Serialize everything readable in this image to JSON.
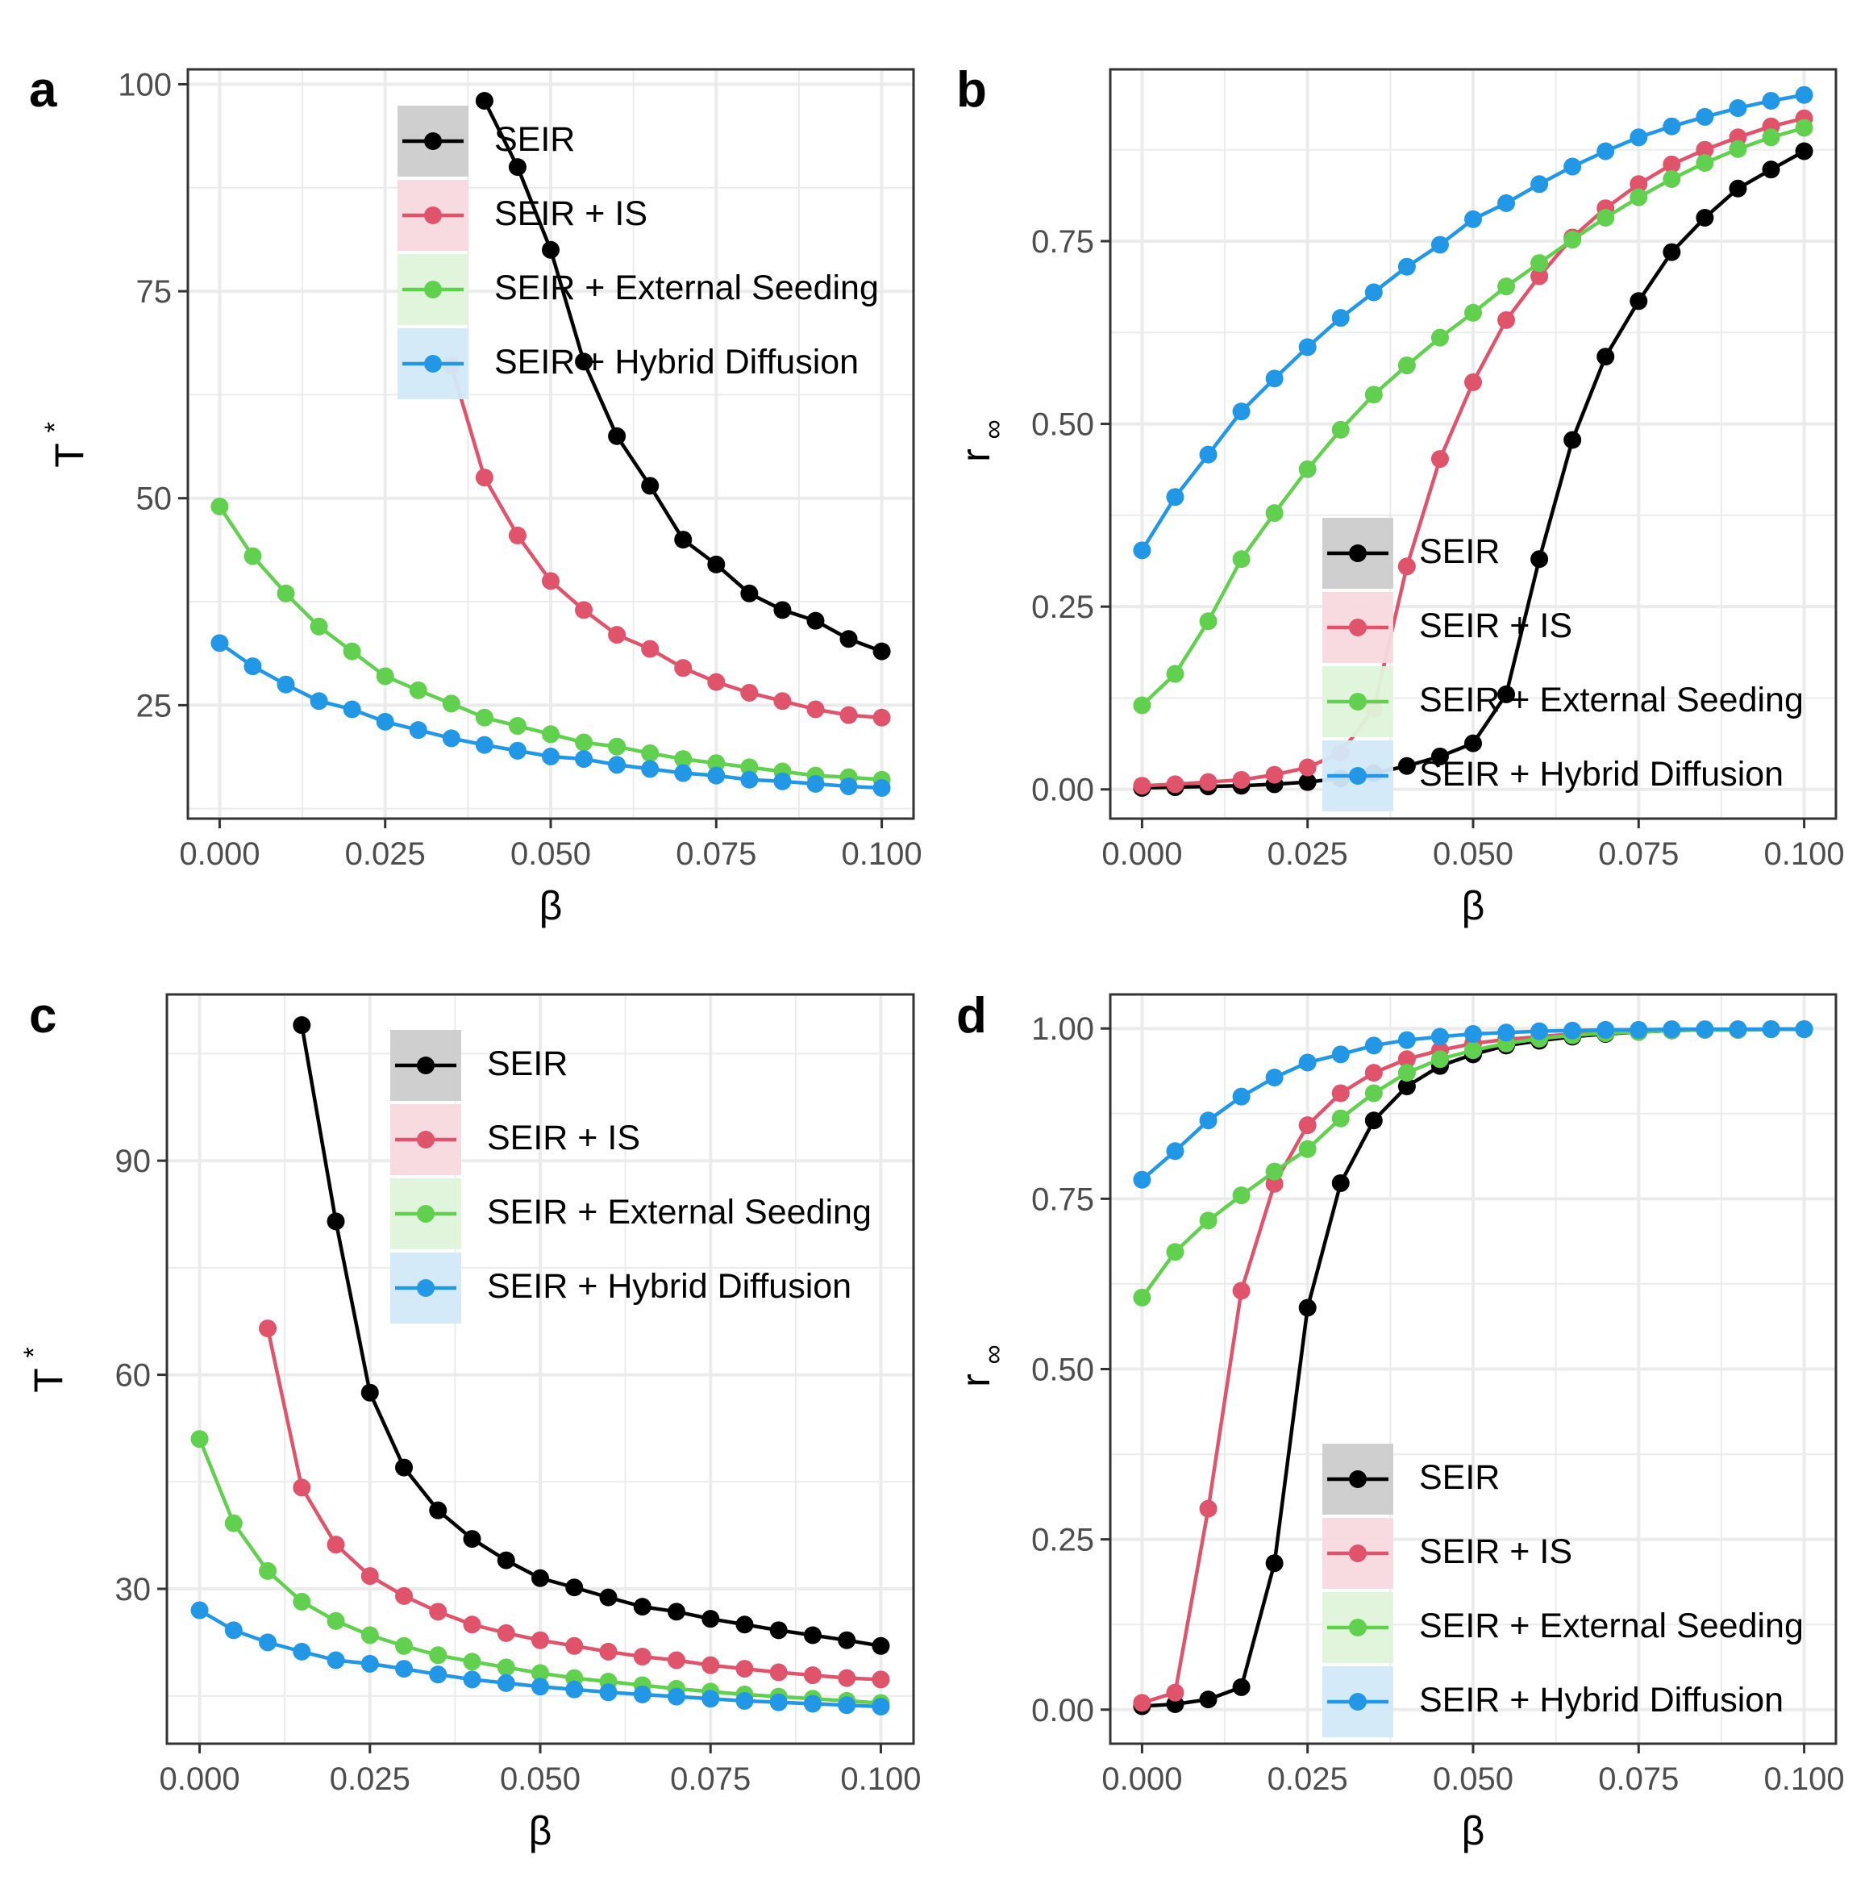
{
  "figure": {
    "title": ""
  },
  "colors": {
    "SEIR": "#000000",
    "SEIR + IS": "#DF536B",
    "SEIR + External Seeding": "#61D04F",
    "SEIR + Hybrid Diffusion": "#2297E6",
    "grid": "#EBEBEB",
    "panel_border": "#333333"
  },
  "chart_data": [
    {
      "panel_id": "a",
      "type": "line",
      "panel_label": "a",
      "xlabel": "β",
      "ylabel_main": "T",
      "ylabel_sup": "*",
      "ylabel_sub": "",
      "xlim": [
        -0.0048,
        0.1048
      ],
      "ylim": [
        11.3,
        101.8
      ],
      "xticks": [
        0,
        0.025,
        0.05,
        0.075,
        0.1
      ],
      "xtick_labels": [
        "0.000",
        "0.025",
        "0.050",
        "0.075",
        "0.100"
      ],
      "yticks": [
        25,
        50,
        75,
        100
      ],
      "ytick_labels": [
        "25",
        "50",
        "75",
        "100"
      ],
      "legend_position": "top-right",
      "series": [
        {
          "name": "SEIR",
          "x": [
            0.04,
            0.045,
            0.05,
            0.055,
            0.06,
            0.065,
            0.07,
            0.075,
            0.08,
            0.085,
            0.09,
            0.095,
            0.1
          ],
          "y": [
            98,
            90,
            80,
            66.5,
            57.5,
            51.5,
            45,
            42,
            38.5,
            36.5,
            35.2,
            33,
            31.5
          ]
        },
        {
          "name": "SEIR + IS",
          "x": [
            0.035,
            0.04,
            0.045,
            0.05,
            0.055,
            0.06,
            0.065,
            0.07,
            0.075,
            0.08,
            0.085,
            0.09,
            0.095,
            0.1
          ],
          "y": [
            66,
            52.5,
            45.5,
            40,
            36.5,
            33.5,
            31.8,
            29.5,
            27.8,
            26.5,
            25.5,
            24.5,
            23.8,
            23.5
          ]
        },
        {
          "name": "SEIR + External Seeding",
          "x": [
            0,
            0.005,
            0.01,
            0.015,
            0.02,
            0.025,
            0.03,
            0.035,
            0.04,
            0.045,
            0.05,
            0.055,
            0.06,
            0.065,
            0.07,
            0.075,
            0.08,
            0.085,
            0.09,
            0.095,
            0.1
          ],
          "y": [
            49,
            43,
            38.5,
            34.5,
            31.5,
            28.5,
            26.8,
            25.2,
            23.5,
            22.5,
            21.5,
            20.5,
            20,
            19.2,
            18.5,
            18,
            17.5,
            17,
            16.5,
            16.3,
            16
          ]
        },
        {
          "name": "SEIR + Hybrid Diffusion",
          "x": [
            0,
            0.005,
            0.01,
            0.015,
            0.02,
            0.025,
            0.03,
            0.035,
            0.04,
            0.045,
            0.05,
            0.055,
            0.06,
            0.065,
            0.07,
            0.075,
            0.08,
            0.085,
            0.09,
            0.095,
            0.1
          ],
          "y": [
            32.5,
            29.7,
            27.5,
            25.5,
            24.5,
            23,
            22,
            21,
            20.2,
            19.5,
            18.8,
            18.5,
            17.8,
            17.3,
            16.8,
            16.5,
            16,
            15.8,
            15.5,
            15.2,
            15
          ]
        }
      ]
    },
    {
      "panel_id": "b",
      "type": "line",
      "panel_label": "b",
      "xlabel": "β",
      "ylabel_main": "r",
      "ylabel_sup": "",
      "ylabel_sub": "∞",
      "xlim": [
        -0.0048,
        0.1048
      ],
      "ylim": [
        -0.04,
        0.985
      ],
      "xticks": [
        0,
        0.025,
        0.05,
        0.075,
        0.1
      ],
      "xtick_labels": [
        "0.000",
        "0.025",
        "0.050",
        "0.075",
        "0.100"
      ],
      "yticks": [
        0,
        0.25,
        0.5,
        0.75
      ],
      "ytick_labels": [
        "0.00",
        "0.25",
        "0.50",
        "0.75"
      ],
      "legend_position": "bottom-right",
      "series": [
        {
          "name": "SEIR",
          "x": [
            0,
            0.005,
            0.01,
            0.015,
            0.02,
            0.025,
            0.03,
            0.035,
            0.04,
            0.045,
            0.05,
            0.055,
            0.06,
            0.065,
            0.07,
            0.075,
            0.08,
            0.085,
            0.09,
            0.095,
            0.1
          ],
          "y": [
            0.002,
            0.003,
            0.004,
            0.005,
            0.007,
            0.01,
            0.015,
            0.022,
            0.032,
            0.045,
            0.063,
            0.13,
            0.315,
            0.478,
            0.592,
            0.668,
            0.735,
            0.782,
            0.822,
            0.848,
            0.873
          ]
        },
        {
          "name": "SEIR + IS",
          "x": [
            0,
            0.005,
            0.01,
            0.015,
            0.02,
            0.025,
            0.03,
            0.035,
            0.04,
            0.045,
            0.05,
            0.055,
            0.06,
            0.065,
            0.07,
            0.075,
            0.08,
            0.085,
            0.09,
            0.095,
            0.1
          ],
          "y": [
            0.005,
            0.007,
            0.01,
            0.013,
            0.02,
            0.03,
            0.05,
            0.11,
            0.305,
            0.452,
            0.557,
            0.642,
            0.702,
            0.755,
            0.795,
            0.828,
            0.855,
            0.875,
            0.892,
            0.907,
            0.918
          ]
        },
        {
          "name": "SEIR + External Seeding",
          "x": [
            0,
            0.005,
            0.01,
            0.015,
            0.02,
            0.025,
            0.03,
            0.035,
            0.04,
            0.045,
            0.05,
            0.055,
            0.06,
            0.065,
            0.07,
            0.075,
            0.08,
            0.085,
            0.09,
            0.095,
            0.1
          ],
          "y": [
            0.115,
            0.158,
            0.23,
            0.315,
            0.378,
            0.438,
            0.492,
            0.54,
            0.58,
            0.618,
            0.652,
            0.688,
            0.72,
            0.752,
            0.782,
            0.81,
            0.835,
            0.857,
            0.876,
            0.892,
            0.905
          ]
        },
        {
          "name": "SEIR + Hybrid Diffusion",
          "x": [
            0,
            0.005,
            0.01,
            0.015,
            0.02,
            0.025,
            0.03,
            0.035,
            0.04,
            0.045,
            0.05,
            0.055,
            0.06,
            0.065,
            0.07,
            0.075,
            0.08,
            0.085,
            0.09,
            0.095,
            0.1
          ],
          "y": [
            0.327,
            0.4,
            0.458,
            0.517,
            0.562,
            0.605,
            0.645,
            0.68,
            0.715,
            0.745,
            0.78,
            0.802,
            0.828,
            0.852,
            0.873,
            0.892,
            0.907,
            0.92,
            0.932,
            0.942,
            0.95
          ]
        }
      ]
    },
    {
      "panel_id": "c",
      "type": "line",
      "panel_label": "c",
      "xlabel": "β",
      "ylabel_main": "T",
      "ylabel_sup": "*",
      "ylabel_sub": "",
      "xlim": [
        -0.0048,
        0.1048
      ],
      "ylim": [
        8.3,
        113.3
      ],
      "xticks": [
        0,
        0.025,
        0.05,
        0.075,
        0.1
      ],
      "xtick_labels": [
        "0.000",
        "0.025",
        "0.050",
        "0.075",
        "0.100"
      ],
      "yticks": [
        30,
        60,
        90
      ],
      "ytick_labels": [
        "30",
        "60",
        "90"
      ],
      "legend_position": "top-right",
      "series": [
        {
          "name": "SEIR",
          "x": [
            0.015,
            0.02,
            0.025,
            0.03,
            0.035,
            0.04,
            0.045,
            0.05,
            0.055,
            0.06,
            0.065,
            0.07,
            0.075,
            0.08,
            0.085,
            0.09,
            0.095,
            0.1
          ],
          "y": [
            109,
            81.5,
            57.5,
            47,
            41,
            37,
            34,
            31.5,
            30.2,
            28.8,
            27.5,
            26.8,
            25.8,
            25,
            24.2,
            23.5,
            22.8,
            22
          ]
        },
        {
          "name": "SEIR + IS",
          "x": [
            0.01,
            0.015,
            0.02,
            0.025,
            0.03,
            0.035,
            0.04,
            0.045,
            0.05,
            0.055,
            0.06,
            0.065,
            0.07,
            0.075,
            0.08,
            0.085,
            0.09,
            0.095,
            0.1
          ],
          "y": [
            66.5,
            44.2,
            36.2,
            31.8,
            29,
            26.8,
            25,
            23.8,
            22.8,
            22,
            21.2,
            20.5,
            20,
            19.3,
            18.8,
            18.3,
            17.9,
            17.5,
            17.3
          ]
        },
        {
          "name": "SEIR + External Seeding",
          "x": [
            0,
            0.005,
            0.01,
            0.015,
            0.02,
            0.025,
            0.03,
            0.035,
            0.04,
            0.045,
            0.05,
            0.055,
            0.06,
            0.065,
            0.07,
            0.075,
            0.08,
            0.085,
            0.09,
            0.095,
            0.1
          ],
          "y": [
            51,
            39.2,
            32.5,
            28.2,
            25.5,
            23.5,
            22,
            20.7,
            19.8,
            19,
            18.2,
            17.5,
            17,
            16.5,
            16,
            15.6,
            15.2,
            14.9,
            14.6,
            14.3,
            14
          ]
        },
        {
          "name": "SEIR + Hybrid Diffusion",
          "x": [
            0,
            0.005,
            0.01,
            0.015,
            0.02,
            0.025,
            0.03,
            0.035,
            0.04,
            0.045,
            0.05,
            0.055,
            0.06,
            0.065,
            0.07,
            0.075,
            0.08,
            0.085,
            0.09,
            0.095,
            0.1
          ],
          "y": [
            27,
            24.2,
            22.5,
            21.2,
            20,
            19.5,
            18.8,
            18,
            17.3,
            16.8,
            16.3,
            15.9,
            15.5,
            15.2,
            14.9,
            14.6,
            14.3,
            14.1,
            13.9,
            13.7,
            13.5
          ]
        }
      ]
    },
    {
      "panel_id": "d",
      "type": "line",
      "panel_label": "d",
      "xlabel": "β",
      "ylabel_main": "r",
      "ylabel_sup": "",
      "ylabel_sub": "∞",
      "xlim": [
        -0.0048,
        0.1048
      ],
      "ylim": [
        -0.05,
        1.05
      ],
      "xticks": [
        0,
        0.025,
        0.05,
        0.075,
        0.1
      ],
      "xtick_labels": [
        "0.000",
        "0.025",
        "0.050",
        "0.075",
        "0.100"
      ],
      "yticks": [
        0,
        0.25,
        0.5,
        0.75,
        1
      ],
      "ytick_labels": [
        "0.00",
        "0.25",
        "0.50",
        "0.75",
        "1.00"
      ],
      "legend_position": "bottom-right",
      "series": [
        {
          "name": "SEIR",
          "x": [
            0,
            0.005,
            0.01,
            0.015,
            0.02,
            0.025,
            0.03,
            0.035,
            0.04,
            0.045,
            0.05,
            0.055,
            0.06,
            0.065,
            0.07,
            0.075,
            0.08,
            0.085,
            0.09,
            0.095,
            0.1
          ],
          "y": [
            0.005,
            0.008,
            0.015,
            0.033,
            0.215,
            0.59,
            0.773,
            0.865,
            0.915,
            0.945,
            0.962,
            0.975,
            0.982,
            0.988,
            0.992,
            0.995,
            0.997,
            0.998,
            0.998,
            0.999,
            0.999
          ]
        },
        {
          "name": "SEIR + IS",
          "x": [
            0,
            0.005,
            0.01,
            0.015,
            0.02,
            0.025,
            0.03,
            0.035,
            0.04,
            0.045,
            0.05,
            0.055,
            0.06,
            0.065,
            0.07,
            0.075,
            0.08,
            0.085,
            0.09,
            0.095,
            0.1
          ],
          "y": [
            0.01,
            0.025,
            0.295,
            0.615,
            0.772,
            0.858,
            0.905,
            0.935,
            0.955,
            0.968,
            0.978,
            0.984,
            0.988,
            0.992,
            0.995,
            0.996,
            0.997,
            0.998,
            0.998,
            0.999,
            0.999
          ]
        },
        {
          "name": "SEIR + External Seeding",
          "x": [
            0,
            0.005,
            0.01,
            0.015,
            0.02,
            0.025,
            0.03,
            0.035,
            0.04,
            0.045,
            0.05,
            0.055,
            0.06,
            0.065,
            0.07,
            0.075,
            0.08,
            0.085,
            0.09,
            0.095,
            0.1
          ],
          "y": [
            0.605,
            0.672,
            0.718,
            0.755,
            0.79,
            0.823,
            0.868,
            0.905,
            0.935,
            0.955,
            0.968,
            0.978,
            0.985,
            0.99,
            0.993,
            0.995,
            0.997,
            0.998,
            0.998,
            0.999,
            0.999
          ]
        },
        {
          "name": "SEIR + Hybrid Diffusion",
          "x": [
            0,
            0.005,
            0.01,
            0.015,
            0.02,
            0.025,
            0.03,
            0.035,
            0.04,
            0.045,
            0.05,
            0.055,
            0.06,
            0.065,
            0.07,
            0.075,
            0.08,
            0.085,
            0.09,
            0.095,
            0.1
          ],
          "y": [
            0.778,
            0.82,
            0.865,
            0.9,
            0.928,
            0.95,
            0.962,
            0.975,
            0.983,
            0.988,
            0.992,
            0.994,
            0.996,
            0.997,
            0.998,
            0.998,
            0.999,
            0.999,
            0.999,
            0.999,
            0.999
          ]
        }
      ]
    }
  ]
}
